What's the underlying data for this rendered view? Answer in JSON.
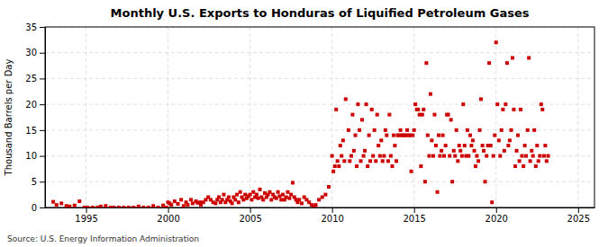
{
  "chart_data": {
    "type": "scatter",
    "title": "Monthly U.S. Exports to Honduras of Liquified Petroleum Gases",
    "ylabel": "Thousand Barrels per Day",
    "source": "Source: U.S. Energy Information Administration",
    "color": "#cc0000",
    "marker": "square",
    "grid": true,
    "xlim": [
      1992.5,
      2026
    ],
    "ylim": [
      0,
      35
    ],
    "xticks": [
      1995,
      2000,
      2005,
      2010,
      2015,
      2020,
      2025
    ],
    "yticks": [
      0,
      5,
      10,
      15,
      20,
      25,
      30,
      35
    ],
    "x": [
      1993.0,
      1993.2,
      1993.5,
      1993.8,
      1994.0,
      1994.3,
      1994.6,
      1994.9,
      1995.1,
      1995.4,
      1995.7,
      1995.9,
      1996.2,
      1996.5,
      1996.7,
      1997.0,
      1997.3,
      1997.6,
      1997.9,
      1998.2,
      1998.5,
      1998.8,
      1999.1,
      1999.4,
      1999.7,
      1999.9,
      2000.0,
      2000.1,
      2000.2,
      2000.4,
      2000.6,
      2000.8,
      2000.95,
      2001.1,
      2001.2,
      2001.4,
      2001.5,
      2001.7,
      2001.8,
      2001.95,
      2002.0,
      2002.15,
      2002.3,
      2002.45,
      2002.6,
      2002.75,
      2002.9,
      2003.0,
      2003.1,
      2003.2,
      2003.3,
      2003.4,
      2003.5,
      2003.6,
      2003.7,
      2003.8,
      2003.9,
      2004.0,
      2004.1,
      2004.2,
      2004.3,
      2004.4,
      2004.5,
      2004.6,
      2004.7,
      2004.8,
      2004.9,
      2005.0,
      2005.1,
      2005.2,
      2005.3,
      2005.4,
      2005.5,
      2005.6,
      2005.7,
      2005.8,
      2005.9,
      2006.0,
      2006.1,
      2006.2,
      2006.3,
      2006.4,
      2006.5,
      2006.6,
      2006.7,
      2006.8,
      2006.9,
      2007.0,
      2007.1,
      2007.2,
      2007.3,
      2007.4,
      2007.5,
      2007.6,
      2007.7,
      2007.8,
      2007.9,
      2008.0,
      2008.15,
      2008.3,
      2008.45,
      2008.6,
      2008.75,
      2008.9,
      2009.0,
      2009.2,
      2009.4,
      2009.6,
      2009.8,
      2010.0,
      2010.08,
      2010.17,
      2010.25,
      2010.33,
      2010.42,
      2010.5,
      2010.58,
      2010.67,
      2010.75,
      2010.83,
      2011.0,
      2011.08,
      2011.17,
      2011.25,
      2011.33,
      2011.42,
      2011.5,
      2011.58,
      2011.67,
      2011.75,
      2011.83,
      2011.92,
      2012.0,
      2012.08,
      2012.17,
      2012.25,
      2012.33,
      2012.42,
      2012.5,
      2012.58,
      2012.67,
      2012.75,
      2012.83,
      2012.92,
      2013.0,
      2013.08,
      2013.17,
      2013.25,
      2013.33,
      2013.42,
      2013.5,
      2013.58,
      2013.67,
      2013.75,
      2013.83,
      2013.92,
      2014.0,
      2014.08,
      2014.17,
      2014.25,
      2014.33,
      2014.42,
      2014.5,
      2014.58,
      2014.67,
      2014.75,
      2014.83,
      2014.92,
      2015.0,
      2015.08,
      2015.17,
      2015.25,
      2015.33,
      2015.42,
      2015.5,
      2015.58,
      2015.67,
      2015.75,
      2015.83,
      2015.92,
      2016.0,
      2016.08,
      2016.17,
      2016.25,
      2016.33,
      2016.42,
      2016.5,
      2016.58,
      2016.67,
      2016.75,
      2016.83,
      2016.92,
      2017.0,
      2017.08,
      2017.17,
      2017.25,
      2017.33,
      2017.42,
      2017.5,
      2017.58,
      2017.67,
      2017.75,
      2017.83,
      2017.92,
      2018.0,
      2018.08,
      2018.17,
      2018.25,
      2018.33,
      2018.42,
      2018.5,
      2018.58,
      2018.67,
      2018.75,
      2018.83,
      2018.92,
      2019.0,
      2019.08,
      2019.17,
      2019.25,
      2019.33,
      2019.42,
      2019.5,
      2019.58,
      2019.67,
      2019.75,
      2019.83,
      2019.92,
      2020.0,
      2020.08,
      2020.17,
      2020.25,
      2020.33,
      2020.42,
      2020.5,
      2020.58,
      2020.67,
      2020.75,
      2020.83,
      2020.92,
      2021.0,
      2021.08,
      2021.17,
      2021.25,
      2021.33,
      2021.42,
      2021.5,
      2021.58,
      2021.67,
      2021.75,
      2021.83,
      2021.92,
      2022.0,
      2022.08,
      2022.17,
      2022.25,
      2022.33,
      2022.42,
      2022.5,
      2022.58,
      2022.67,
      2022.75,
      2022.83,
      2022.92,
      2023.0,
      2023.08,
      2023.17
    ],
    "values": [
      1.1,
      0.5,
      0.8,
      0.3,
      0.2,
      0.4,
      1.2,
      0.0,
      0.0,
      0.0,
      0.0,
      0.2,
      0.3,
      0.0,
      0.0,
      0.0,
      0.0,
      0.0,
      0.0,
      0.2,
      0.0,
      0.0,
      0.3,
      0.0,
      0.4,
      0.0,
      1.0,
      0.8,
      0.5,
      1.2,
      0.7,
      1.5,
      0.3,
      1.0,
      0.5,
      1.5,
      0.8,
      1.2,
      0.9,
      1.0,
      0.5,
      1.0,
      1.5,
      2.0,
      1.5,
      1.0,
      0.8,
      1.5,
      2.0,
      1.0,
      1.5,
      2.5,
      1.0,
      1.5,
      2.0,
      1.2,
      0.8,
      2.0,
      1.5,
      2.5,
      1.0,
      3.0,
      2.0,
      1.5,
      2.5,
      1.8,
      2.2,
      2.5,
      1.5,
      3.0,
      2.0,
      2.5,
      1.8,
      3.5,
      2.0,
      1.5,
      2.8,
      2.0,
      2.5,
      3.0,
      1.5,
      2.5,
      2.0,
      1.8,
      3.0,
      2.2,
      1.5,
      2.5,
      1.5,
      2.0,
      3.0,
      1.8,
      2.5,
      4.8,
      2.0,
      1.5,
      1.0,
      1.5,
      0.8,
      2.0,
      1.5,
      1.0,
      0.5,
      0.2,
      0.5,
      1.5,
      2.0,
      2.5,
      4.0,
      10.0,
      7.0,
      8.0,
      19.0,
      9.0,
      8.0,
      12.0,
      10.0,
      13.0,
      9.0,
      21.0,
      15.0,
      9.0,
      10.0,
      18.0,
      11.0,
      14.0,
      8.0,
      20.0,
      15.0,
      9.0,
      17.0,
      10.0,
      11.0,
      20.0,
      8.0,
      14.0,
      9.0,
      19.0,
      10.0,
      15.0,
      9.0,
      18.0,
      12.0,
      10.0,
      13.0,
      9.0,
      10.0,
      15.0,
      14.0,
      9.0,
      18.0,
      10.0,
      8.0,
      14.0,
      12.0,
      9.0,
      14.0,
      14.0,
      15.0,
      14.0,
      14.0,
      14.0,
      14.0,
      15.0,
      14.0,
      14.0,
      7.0,
      14.0,
      15.0,
      20.0,
      19.0,
      19.0,
      18.0,
      8.0,
      18.0,
      19.0,
      5.0,
      28.0,
      14.0,
      10.0,
      22.0,
      13.0,
      10.0,
      18.0,
      12.0,
      3.0,
      14.0,
      10.0,
      11.0,
      14.0,
      10.0,
      12.0,
      18.0,
      18.0,
      10.0,
      17.0,
      5.0,
      11.0,
      10.0,
      15.0,
      9.0,
      12.0,
      11.0,
      10.0,
      20.0,
      12.0,
      10.0,
      15.0,
      10.0,
      14.0,
      12.0,
      13.0,
      11.0,
      8.0,
      10.0,
      9.0,
      15.0,
      21.0,
      12.0,
      11.0,
      5.0,
      10.0,
      12.0,
      28.0,
      12.0,
      1.0,
      10.0,
      14.0,
      32.0,
      20.0,
      13.0,
      10.0,
      15.0,
      19.0,
      11.0,
      20.0,
      28.0,
      12.0,
      13.0,
      15.0,
      29.0,
      19.0,
      8.0,
      11.0,
      14.0,
      9.0,
      19.0,
      10.0,
      8.0,
      12.0,
      10.0,
      15.0,
      29.0,
      9.0,
      11.0,
      10.0,
      15.0,
      8.0,
      12.0,
      9.0,
      10.0,
      20.0,
      19.0,
      10.0,
      12.0,
      9.0,
      10.0
    ]
  }
}
